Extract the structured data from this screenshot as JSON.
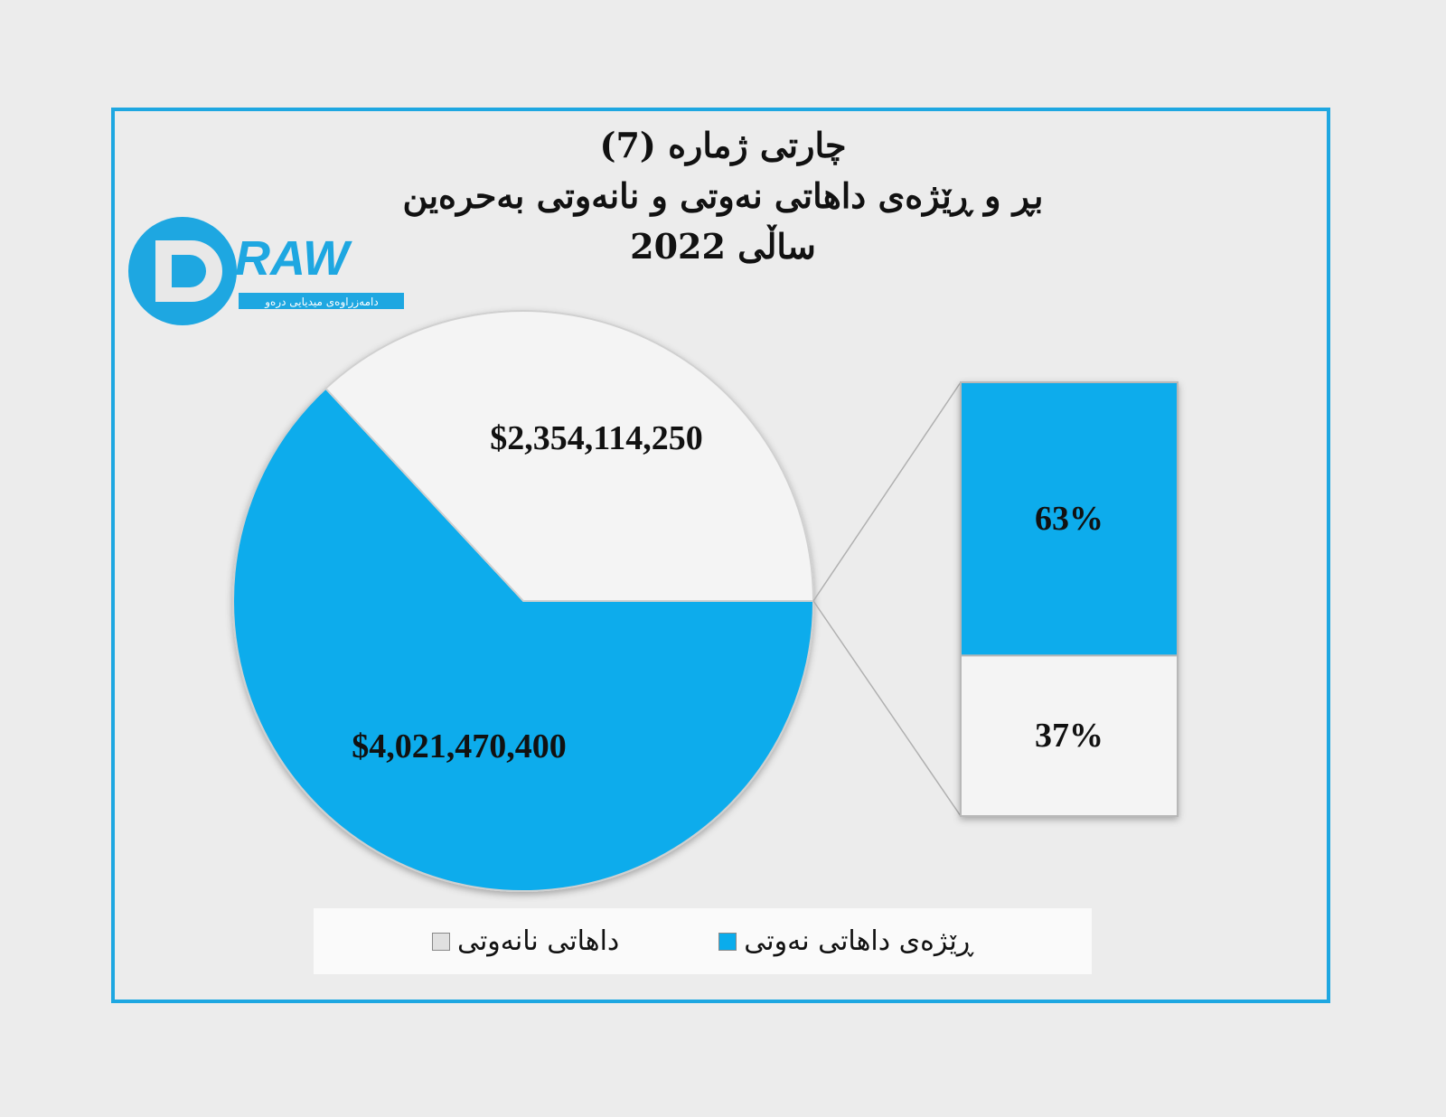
{
  "title": {
    "line1": "چارتی ژماره (7)",
    "line2": "بڕ و ڕێژەی داهاتی نەوتی و نانەوتی بەحرەین",
    "line3": "ساڵی 2022"
  },
  "logo": {
    "text": "DRAW",
    "subtitle": "دامەزراوەی میدیایی درەو"
  },
  "colors": {
    "oil": "#0aacec",
    "non_oil": "#f4f4f4",
    "frame": "#1ea7e1"
  },
  "chart_data": {
    "type": "pie",
    "subtype": "pie-of-bar",
    "slices": [
      {
        "name": "داهاتی نانەوتی",
        "value": 2354114250,
        "label": "$2,354,114,250",
        "color": "#f4f4f4"
      },
      {
        "name": "ڕێژەی داهاتی نەوتی",
        "value": 4021470400,
        "label": "$4,021,470,400",
        "color": "#0aacec"
      }
    ],
    "bar": [
      {
        "name": "ڕێژەی داهاتی نەوتی",
        "percent": 63,
        "label": "63%"
      },
      {
        "name": "داهاتی نانەوتی",
        "percent": 37,
        "label": "37%"
      }
    ],
    "legend": {
      "position": "bottom",
      "items": [
        "ڕێژەی داهاتی نەوتی",
        "داهاتی نانەوتی"
      ]
    }
  }
}
